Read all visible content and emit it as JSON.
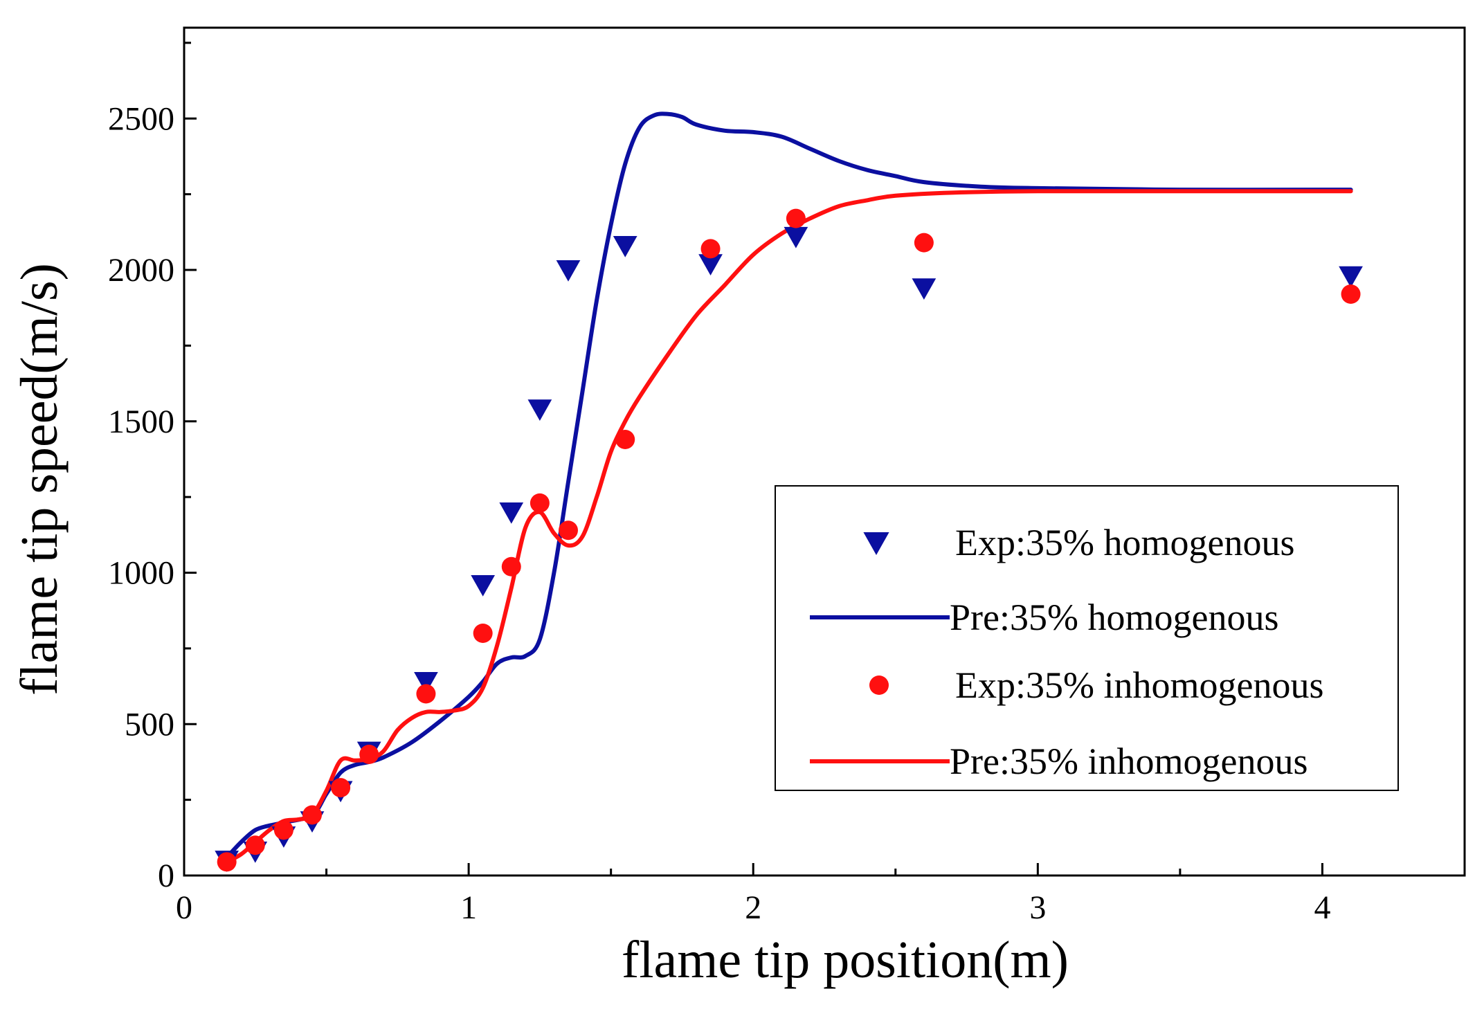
{
  "chart_data": {
    "type": "line+scatter",
    "title": "",
    "xlabel": "flame tip position(m)",
    "ylabel": "flame tip speed(m/s)",
    "xlim": [
      0,
      4.5
    ],
    "ylim": [
      0,
      2800
    ],
    "xticks": [
      0,
      1,
      2,
      3,
      4
    ],
    "yticks": [
      0,
      500,
      1000,
      1500,
      2000,
      2500
    ],
    "grid": false,
    "legend_position": "center-right",
    "colors": {
      "blue": "#0b0fa0",
      "red": "#ff1010"
    },
    "series": [
      {
        "name": "Exp:35% homogenous",
        "kind": "scatter",
        "marker": "triangle-down",
        "color": "#0b0fa0",
        "x": [
          0.15,
          0.25,
          0.35,
          0.45,
          0.55,
          0.65,
          0.85,
          1.05,
          1.15,
          1.25,
          1.35,
          1.55,
          1.85,
          2.15,
          2.6,
          4.1
        ],
        "y": [
          50,
          80,
          130,
          180,
          280,
          410,
          640,
          960,
          1200,
          1540,
          2000,
          2080,
          2020,
          2110,
          1940,
          1980
        ]
      },
      {
        "name": "Pre:35% homogenous",
        "kind": "line",
        "color": "#0b0fa0",
        "x": [
          0.15,
          0.2,
          0.25,
          0.3,
          0.35,
          0.45,
          0.5,
          0.55,
          0.6,
          0.65,
          0.7,
          0.8,
          0.9,
          1.0,
          1.05,
          1.1,
          1.15,
          1.2,
          1.25,
          1.3,
          1.35,
          1.4,
          1.45,
          1.5,
          1.55,
          1.6,
          1.65,
          1.7,
          1.75,
          1.8,
          1.9,
          2.0,
          2.1,
          2.2,
          2.3,
          2.4,
          2.5,
          2.6,
          2.8,
          3.0,
          3.5,
          4.1
        ],
        "y": [
          60,
          110,
          150,
          165,
          175,
          200,
          270,
          340,
          365,
          375,
          390,
          440,
          510,
          590,
          640,
          700,
          720,
          725,
          780,
          1000,
          1300,
          1600,
          1900,
          2150,
          2350,
          2470,
          2510,
          2515,
          2505,
          2480,
          2460,
          2455,
          2440,
          2400,
          2360,
          2330,
          2310,
          2290,
          2275,
          2270,
          2265,
          2265
        ]
      },
      {
        "name": "Exp:35% inhomogenous",
        "kind": "scatter",
        "marker": "circle",
        "color": "#ff1010",
        "x": [
          0.15,
          0.25,
          0.35,
          0.45,
          0.55,
          0.65,
          0.85,
          1.05,
          1.15,
          1.25,
          1.35,
          1.55,
          1.85,
          2.15,
          2.6,
          4.1
        ],
        "y": [
          45,
          100,
          150,
          200,
          290,
          400,
          600,
          800,
          1020,
          1230,
          1140,
          1440,
          2070,
          2170,
          2090,
          1920
        ]
      },
      {
        "name": "Pre:35% inhomogenous",
        "kind": "line",
        "color": "#ff1010",
        "x": [
          0.15,
          0.2,
          0.25,
          0.3,
          0.35,
          0.4,
          0.45,
          0.5,
          0.55,
          0.6,
          0.65,
          0.7,
          0.75,
          0.8,
          0.85,
          0.9,
          0.95,
          1.0,
          1.05,
          1.1,
          1.15,
          1.2,
          1.25,
          1.3,
          1.35,
          1.4,
          1.45,
          1.5,
          1.55,
          1.6,
          1.7,
          1.8,
          1.9,
          2.0,
          2.1,
          2.2,
          2.3,
          2.4,
          2.5,
          2.7,
          3.0,
          3.5,
          4.1
        ],
        "y": [
          45,
          70,
          110,
          150,
          180,
          185,
          200,
          280,
          380,
          380,
          385,
          410,
          480,
          520,
          540,
          540,
          545,
          560,
          620,
          760,
          950,
          1150,
          1200,
          1130,
          1090,
          1120,
          1250,
          1400,
          1500,
          1580,
          1720,
          1850,
          1950,
          2050,
          2120,
          2170,
          2210,
          2230,
          2245,
          2255,
          2260,
          2260,
          2260
        ]
      }
    ]
  }
}
